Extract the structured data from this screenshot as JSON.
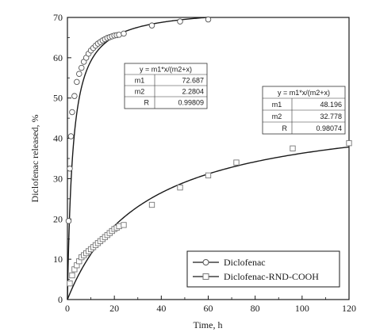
{
  "chart_data": {
    "type": "scatter",
    "title": "",
    "xlabel": "Time, h",
    "ylabel": "Diclofenac released, %",
    "xlim": [
      0,
      120
    ],
    "ylim": [
      0,
      70
    ],
    "x_ticks": [
      "0",
      "20",
      "40",
      "60",
      "80",
      "100",
      "120"
    ],
    "y_ticks": [
      "0",
      "10",
      "20",
      "30",
      "40",
      "50",
      "60",
      "70"
    ],
    "grid": false,
    "legend_position": "bottom-right",
    "series": [
      {
        "name": "Diclofenac",
        "marker": "circle",
        "points": [
          [
            0.5,
            19.5
          ],
          [
            1,
            32.5
          ],
          [
            1.5,
            40.5
          ],
          [
            2,
            46.5
          ],
          [
            3,
            50.5
          ],
          [
            4,
            54
          ],
          [
            5,
            56
          ],
          [
            6,
            57.5
          ],
          [
            7,
            59
          ],
          [
            8,
            60
          ],
          [
            9,
            61
          ],
          [
            10,
            61.8
          ],
          [
            11,
            62.4
          ],
          [
            12,
            63
          ],
          [
            13,
            63.5
          ],
          [
            14,
            63.9
          ],
          [
            15,
            64.3
          ],
          [
            16,
            64.6
          ],
          [
            17,
            64.9
          ],
          [
            18,
            65.1
          ],
          [
            19,
            65.3
          ],
          [
            20,
            65.5
          ],
          [
            21,
            65.6
          ],
          [
            22,
            65.7
          ],
          [
            24,
            66
          ],
          [
            36,
            68
          ],
          [
            48,
            69
          ],
          [
            60,
            69.5
          ]
        ],
        "fit": {
          "m1": 72.687,
          "m2": 2.2804,
          "x_range": [
            0,
            60
          ]
        }
      },
      {
        "name": "Diclofenac-RND-COOH",
        "marker": "square",
        "points": [
          [
            1,
            4
          ],
          [
            2,
            6
          ],
          [
            3,
            7.5
          ],
          [
            4,
            8.5
          ],
          [
            5,
            9.5
          ],
          [
            6,
            10.5
          ],
          [
            7,
            11
          ],
          [
            8,
            11.5
          ],
          [
            9,
            12
          ],
          [
            10,
            12.5
          ],
          [
            11,
            13
          ],
          [
            12,
            13.5
          ],
          [
            13,
            14
          ],
          [
            14,
            14.5
          ],
          [
            15,
            15
          ],
          [
            16,
            15.5
          ],
          [
            17,
            16
          ],
          [
            18,
            16.5
          ],
          [
            19,
            17
          ],
          [
            20,
            17.5
          ],
          [
            21,
            17.8
          ],
          [
            22,
            18.2
          ],
          [
            24,
            18.5
          ],
          [
            36,
            23.5
          ],
          [
            48,
            27.8
          ],
          [
            60,
            30.8
          ],
          [
            72,
            34
          ],
          [
            96,
            37.5
          ],
          [
            120,
            38.8
          ]
        ],
        "fit": {
          "m1": 48.196,
          "m2": 32.778,
          "x_range": [
            0,
            120
          ]
        }
      }
    ],
    "fit_tables": [
      {
        "equation": "y = m1*x/(m2+x)",
        "rows": [
          {
            "label": "m1",
            "value": "72.687"
          },
          {
            "label": "m2",
            "value": "2.2804"
          },
          {
            "label": "R",
            "value": "0.99809"
          }
        ]
      },
      {
        "equation": "y = m1*x/(m2+x)",
        "rows": [
          {
            "label": "m1",
            "value": "48.196"
          },
          {
            "label": "m2",
            "value": "32.778"
          },
          {
            "label": "R",
            "value": "0.98074"
          }
        ]
      }
    ]
  }
}
